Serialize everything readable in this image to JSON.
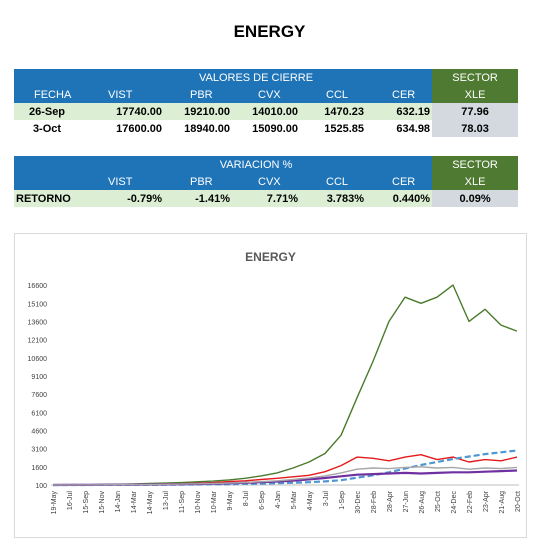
{
  "title": "ENERGY",
  "table1": {
    "header": "VALORES DE CIERRE",
    "sector_header": "SECTOR",
    "columns": [
      "FECHA",
      "VIST",
      "PBR",
      "CVX",
      "CCL",
      "CER"
    ],
    "sector_col": "XLE",
    "rows": [
      {
        "fecha": "26-Sep",
        "vist": "17740.00",
        "pbr": "19210.00",
        "cvx": "14010.00",
        "ccl": "1470.23",
        "cer": "632.19",
        "xle": "77.96"
      },
      {
        "fecha": "3-Oct",
        "vist": "17600.00",
        "pbr": "18940.00",
        "cvx": "15090.00",
        "ccl": "1525.85",
        "cer": "634.98",
        "xle": "78.03"
      }
    ]
  },
  "table2": {
    "header": "VARIACION %",
    "sector_header": "SECTOR",
    "columns": [
      "VIST",
      "PBR",
      "CVX",
      "CCL",
      "CER"
    ],
    "sector_col": "XLE",
    "row": {
      "label": "RETORNO",
      "vist": "-0.79%",
      "pbr": "-1.41%",
      "cvx": "7.71%",
      "ccl": "3.783%",
      "cer": "0.440%",
      "xle": "0.09%"
    }
  },
  "chart_data": {
    "type": "line",
    "title": "ENERGY",
    "ylim": [
      100,
      17350
    ],
    "yticks": [
      "16600",
      "15100",
      "13600",
      "12100",
      "10600",
      "9100",
      "7600",
      "6100",
      "4600",
      "3100",
      "1600",
      "100"
    ],
    "x": [
      "19-May",
      "16-Jul",
      "15-Sep",
      "15-Nov",
      "14-Jan",
      "14-Mar",
      "14-May",
      "13-Jul",
      "11-Sep",
      "10-Nov",
      "10-Mar",
      "9-May",
      "8-Jul",
      "6-Sep",
      "4-Jan",
      "5-Mar",
      "4-May",
      "3-Jul",
      "1-Sep",
      "30-Dec",
      "28-Feb",
      "28-Apr",
      "27-Jun",
      "26-Aug",
      "25-Oct",
      "24-Dec",
      "22-Feb",
      "23-Apr",
      "21-Aug",
      "20-Oct"
    ],
    "series": [
      {
        "color": "#4a7b2c",
        "values": [
          100,
          110,
          120,
          140,
          160,
          180,
          220,
          260,
          300,
          360,
          420,
          520,
          650,
          850,
          1100,
          1500,
          2000,
          2700,
          4200,
          7300,
          10300,
          13600,
          15600,
          15100,
          15600,
          16600,
          13600,
          14600,
          13300,
          12800
        ]
      },
      {
        "color": "#e31a1c",
        "values": [
          100,
          110,
          120,
          130,
          140,
          150,
          160,
          180,
          210,
          250,
          300,
          380,
          450,
          550,
          650,
          780,
          900,
          1200,
          1700,
          2400,
          2300,
          2100,
          2400,
          2600,
          2200,
          2400,
          2000,
          2200,
          2100,
          2400
        ]
      },
      {
        "color": "#4e97d4",
        "values": [
          100,
          102,
          104,
          107,
          110,
          114,
          118,
          124,
          132,
          142,
          155,
          170,
          190,
          215,
          245,
          285,
          335,
          400,
          500,
          700,
          900,
          1150,
          1450,
          1750,
          2000,
          2250,
          2450,
          2650,
          2800,
          2950
        ]
      },
      {
        "color": "#7030a0",
        "values": [
          100,
          105,
          110,
          115,
          122,
          130,
          140,
          150,
          165,
          185,
          210,
          240,
          280,
          330,
          390,
          460,
          560,
          680,
          820,
          950,
          1000,
          1050,
          1100,
          1050,
          1100,
          1150,
          1150,
          1200,
          1250,
          1300
        ]
      },
      {
        "color": "#a6a6a6",
        "values": [
          100,
          105,
          110,
          118,
          125,
          135,
          145,
          160,
          175,
          195,
          220,
          260,
          310,
          370,
          450,
          550,
          680,
          850,
          1100,
          1400,
          1500,
          1450,
          1550,
          1600,
          1500,
          1550,
          1400,
          1500,
          1450,
          1550
        ]
      }
    ]
  }
}
